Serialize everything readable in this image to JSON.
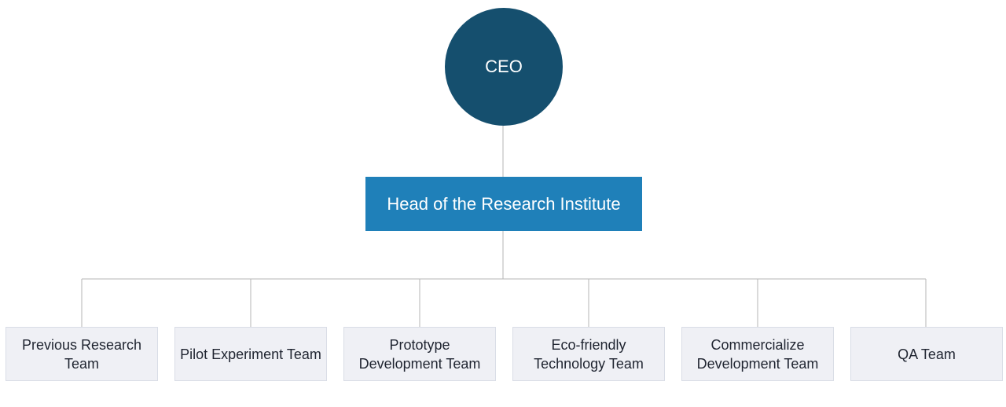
{
  "colors": {
    "ceo_fill": "#154f6e",
    "head_fill": "#1f80b9",
    "team_fill": "#eff0f5",
    "connector": "#b5b5b5"
  },
  "ceo": {
    "label": "CEO"
  },
  "head": {
    "label": "Head of the Research Institute"
  },
  "teams": [
    {
      "label": "Previous Research Team"
    },
    {
      "label": "Pilot Experiment Team"
    },
    {
      "label": "Prototype Development Team"
    },
    {
      "label": "Eco-friendly Technology Team"
    },
    {
      "label": "Commercialize Development Team"
    },
    {
      "label": "QA Team"
    }
  ]
}
